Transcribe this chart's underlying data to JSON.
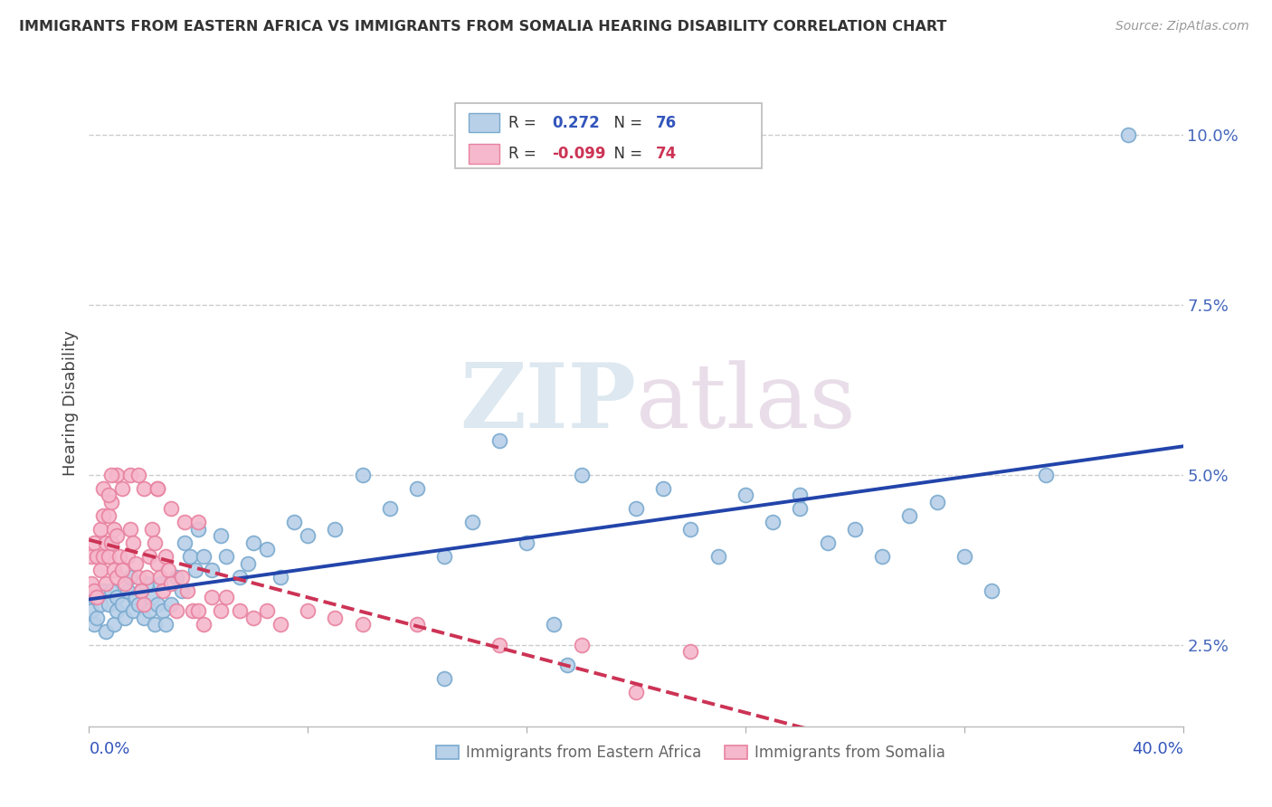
{
  "title": "IMMIGRANTS FROM EASTERN AFRICA VS IMMIGRANTS FROM SOMALIA HEARING DISABILITY CORRELATION CHART",
  "source": "Source: ZipAtlas.com",
  "ylabel": "Hearing Disability",
  "legend1_R": "0.272",
  "legend1_N": "76",
  "legend2_R": "-0.099",
  "legend2_N": "74",
  "blue_face": "#b8d0e8",
  "blue_edge": "#7aaacf",
  "pink_face": "#f5b8cc",
  "pink_edge": "#e882a0",
  "blue_line": "#2244aa",
  "pink_line": "#cc3355",
  "watermark_zip": "ZIP",
  "watermark_atlas": "atlas",
  "bg": "#ffffff",
  "grid_color": "#cccccc",
  "right_tick_color": "#4466bb",
  "xlim": [
    0.0,
    0.4
  ],
  "ylim": [
    0.013,
    0.108
  ],
  "xtick_positions": [
    0.0,
    0.08,
    0.16,
    0.24,
    0.32,
    0.4
  ],
  "ytick_positions": [
    0.025,
    0.05,
    0.075,
    0.1
  ],
  "ytick_labels": [
    "2.5%",
    "5.0%",
    "7.5%",
    "10.0%"
  ],
  "blue_x": [
    0.001,
    0.002,
    0.002,
    0.003,
    0.004,
    0.005,
    0.006,
    0.007,
    0.008,
    0.009,
    0.01,
    0.01,
    0.012,
    0.013,
    0.014,
    0.015,
    0.016,
    0.017,
    0.018,
    0.019,
    0.02,
    0.021,
    0.022,
    0.023,
    0.024,
    0.025,
    0.026,
    0.027,
    0.028,
    0.03,
    0.032,
    0.034,
    0.035,
    0.037,
    0.039,
    0.04,
    0.042,
    0.045,
    0.048,
    0.05,
    0.055,
    0.058,
    0.06,
    0.065,
    0.07,
    0.075,
    0.08,
    0.09,
    0.1,
    0.11,
    0.12,
    0.13,
    0.14,
    0.15,
    0.16,
    0.17,
    0.18,
    0.2,
    0.21,
    0.22,
    0.23,
    0.24,
    0.25,
    0.26,
    0.27,
    0.28,
    0.29,
    0.3,
    0.31,
    0.32,
    0.33,
    0.35,
    0.26,
    0.175,
    0.13,
    0.38
  ],
  "blue_y": [
    0.03,
    0.028,
    0.032,
    0.029,
    0.031,
    0.033,
    0.027,
    0.031,
    0.033,
    0.028,
    0.03,
    0.032,
    0.031,
    0.029,
    0.033,
    0.035,
    0.03,
    0.032,
    0.031,
    0.033,
    0.029,
    0.034,
    0.03,
    0.032,
    0.028,
    0.031,
    0.034,
    0.03,
    0.028,
    0.031,
    0.035,
    0.033,
    0.04,
    0.038,
    0.036,
    0.042,
    0.038,
    0.036,
    0.041,
    0.038,
    0.035,
    0.037,
    0.04,
    0.039,
    0.035,
    0.043,
    0.041,
    0.042,
    0.05,
    0.045,
    0.048,
    0.038,
    0.043,
    0.055,
    0.04,
    0.028,
    0.05,
    0.045,
    0.048,
    0.042,
    0.038,
    0.047,
    0.043,
    0.045,
    0.04,
    0.042,
    0.038,
    0.044,
    0.046,
    0.038,
    0.033,
    0.05,
    0.047,
    0.022,
    0.02,
    0.1
  ],
  "pink_x": [
    0.001,
    0.001,
    0.002,
    0.002,
    0.003,
    0.003,
    0.004,
    0.004,
    0.005,
    0.005,
    0.006,
    0.006,
    0.007,
    0.007,
    0.008,
    0.008,
    0.009,
    0.009,
    0.01,
    0.01,
    0.011,
    0.012,
    0.013,
    0.014,
    0.015,
    0.016,
    0.017,
    0.018,
    0.019,
    0.02,
    0.021,
    0.022,
    0.023,
    0.024,
    0.025,
    0.026,
    0.027,
    0.028,
    0.029,
    0.03,
    0.032,
    0.034,
    0.036,
    0.038,
    0.04,
    0.042,
    0.045,
    0.048,
    0.05,
    0.055,
    0.06,
    0.065,
    0.07,
    0.08,
    0.09,
    0.1,
    0.12,
    0.15,
    0.18,
    0.22,
    0.01,
    0.015,
    0.02,
    0.025,
    0.005,
    0.008,
    0.012,
    0.018,
    0.025,
    0.03,
    0.035,
    0.04,
    0.2,
    0.007
  ],
  "pink_y": [
    0.034,
    0.038,
    0.033,
    0.04,
    0.032,
    0.038,
    0.036,
    0.042,
    0.038,
    0.044,
    0.034,
    0.04,
    0.038,
    0.044,
    0.04,
    0.046,
    0.036,
    0.042,
    0.035,
    0.041,
    0.038,
    0.036,
    0.034,
    0.038,
    0.042,
    0.04,
    0.037,
    0.035,
    0.033,
    0.031,
    0.035,
    0.038,
    0.042,
    0.04,
    0.037,
    0.035,
    0.033,
    0.038,
    0.036,
    0.034,
    0.03,
    0.035,
    0.033,
    0.03,
    0.03,
    0.028,
    0.032,
    0.03,
    0.032,
    0.03,
    0.029,
    0.03,
    0.028,
    0.03,
    0.029,
    0.028,
    0.028,
    0.025,
    0.025,
    0.024,
    0.05,
    0.05,
    0.048,
    0.048,
    0.048,
    0.05,
    0.048,
    0.05,
    0.048,
    0.045,
    0.043,
    0.043,
    0.018,
    0.047
  ]
}
